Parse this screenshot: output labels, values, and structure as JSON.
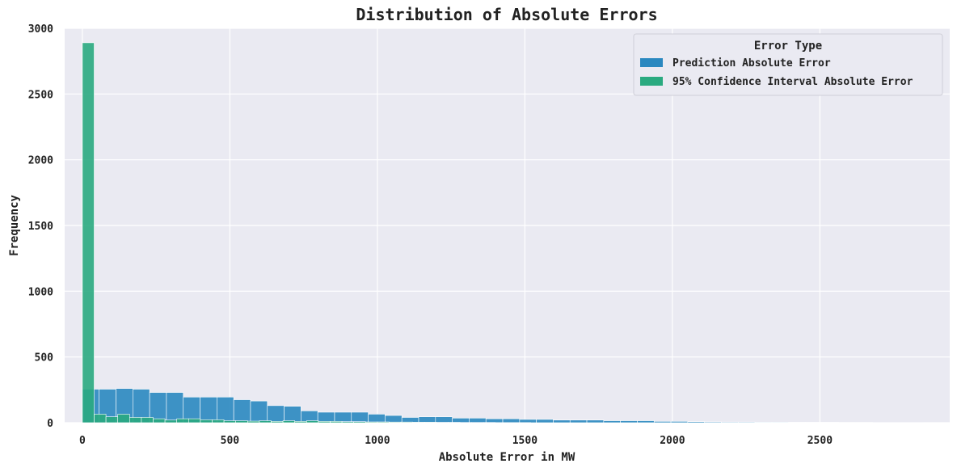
{
  "chart_data": {
    "type": "bar",
    "title": "Distribution of Absolute Errors",
    "xlabel": "Absolute Error in MW",
    "ylabel": "Frequency",
    "xlim": [
      -60,
      2940
    ],
    "ylim": [
      0,
      3000
    ],
    "xticks": [
      0,
      500,
      1000,
      1500,
      2000,
      2500
    ],
    "yticks": [
      0,
      500,
      1000,
      1500,
      2000,
      2500,
      3000
    ],
    "grid": true,
    "legend": {
      "title": "Error Type",
      "placement": "top-right"
    },
    "series": [
      {
        "name": "Prediction Absolute Error",
        "color": "#2a88c0",
        "bin_start": 0,
        "bin_width": 57,
        "values": [
          255,
          255,
          260,
          255,
          230,
          230,
          195,
          195,
          195,
          175,
          165,
          130,
          125,
          90,
          80,
          80,
          80,
          65,
          55,
          40,
          45,
          45,
          35,
          35,
          30,
          30,
          25,
          25,
          20,
          20,
          20,
          15,
          15,
          15,
          10,
          10,
          8,
          6,
          5,
          5,
          4,
          4,
          3,
          3,
          3,
          2,
          2,
          1,
          1,
          1
        ]
      },
      {
        "name": "95% Confidence Interval Absolute Error",
        "color": "#2aaa80",
        "bin_start": 0,
        "bin_width": 40,
        "values": [
          2890,
          65,
          45,
          65,
          40,
          40,
          30,
          20,
          30,
          30,
          22,
          22,
          15,
          15,
          12,
          15,
          10,
          15,
          10,
          15,
          10,
          10,
          8,
          8,
          6,
          6,
          5,
          5,
          4,
          4,
          3,
          3,
          2,
          2,
          2,
          1,
          1,
          1
        ]
      }
    ]
  }
}
